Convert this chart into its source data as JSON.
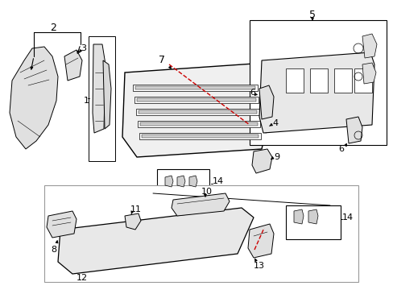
{
  "bg_color": "#ffffff",
  "line_color": "#000000",
  "red_color": "#cc0000",
  "gray_color": "#999999",
  "fig_width": 4.89,
  "fig_height": 3.6,
  "dpi": 100
}
